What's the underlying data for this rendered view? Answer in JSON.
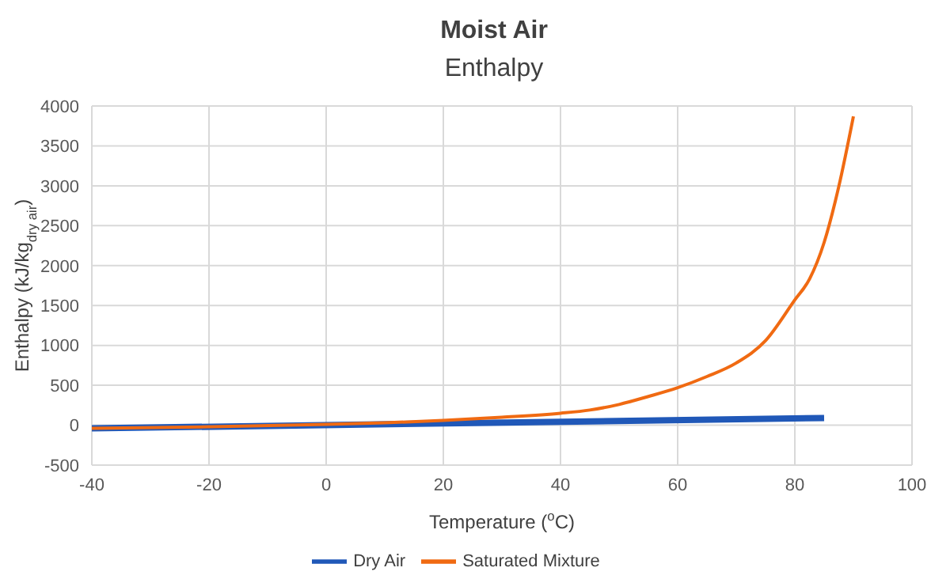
{
  "chart_data": {
    "type": "line",
    "title": "Moist Air",
    "subtitle": "Enthalpy",
    "xlabel": "Temperature ($^{o}$C)",
    "ylabel": "Enthalpy (kJ/kg$_{dry air}$)",
    "xlim": [
      -40,
      100
    ],
    "xticks": [
      -40,
      -20,
      0,
      20,
      40,
      60,
      80,
      100
    ],
    "ylim": [
      -500,
      4000
    ],
    "yticks": [
      -500,
      0,
      500,
      1000,
      1500,
      2000,
      2500,
      3000,
      3500,
      4000
    ],
    "grid": true,
    "legend": "bottom",
    "series": [
      {
        "name": "Dry Air",
        "color": "#2058b8",
        "x": [
          -40,
          85
        ],
        "values": [
          -40,
          90
        ]
      },
      {
        "name": "Saturated Mixture",
        "color": "#f06a12",
        "x": [
          -40,
          -20,
          0,
          10,
          20,
          30,
          40,
          45,
          50,
          55,
          60,
          65,
          70,
          75,
          80,
          82.5,
          85,
          87.5,
          90
        ],
        "values": [
          -40,
          -20,
          10,
          30,
          60,
          100,
          150,
          190,
          260,
          360,
          470,
          610,
          780,
          1060,
          1570,
          1830,
          2290,
          2990,
          3870
        ]
      }
    ]
  }
}
